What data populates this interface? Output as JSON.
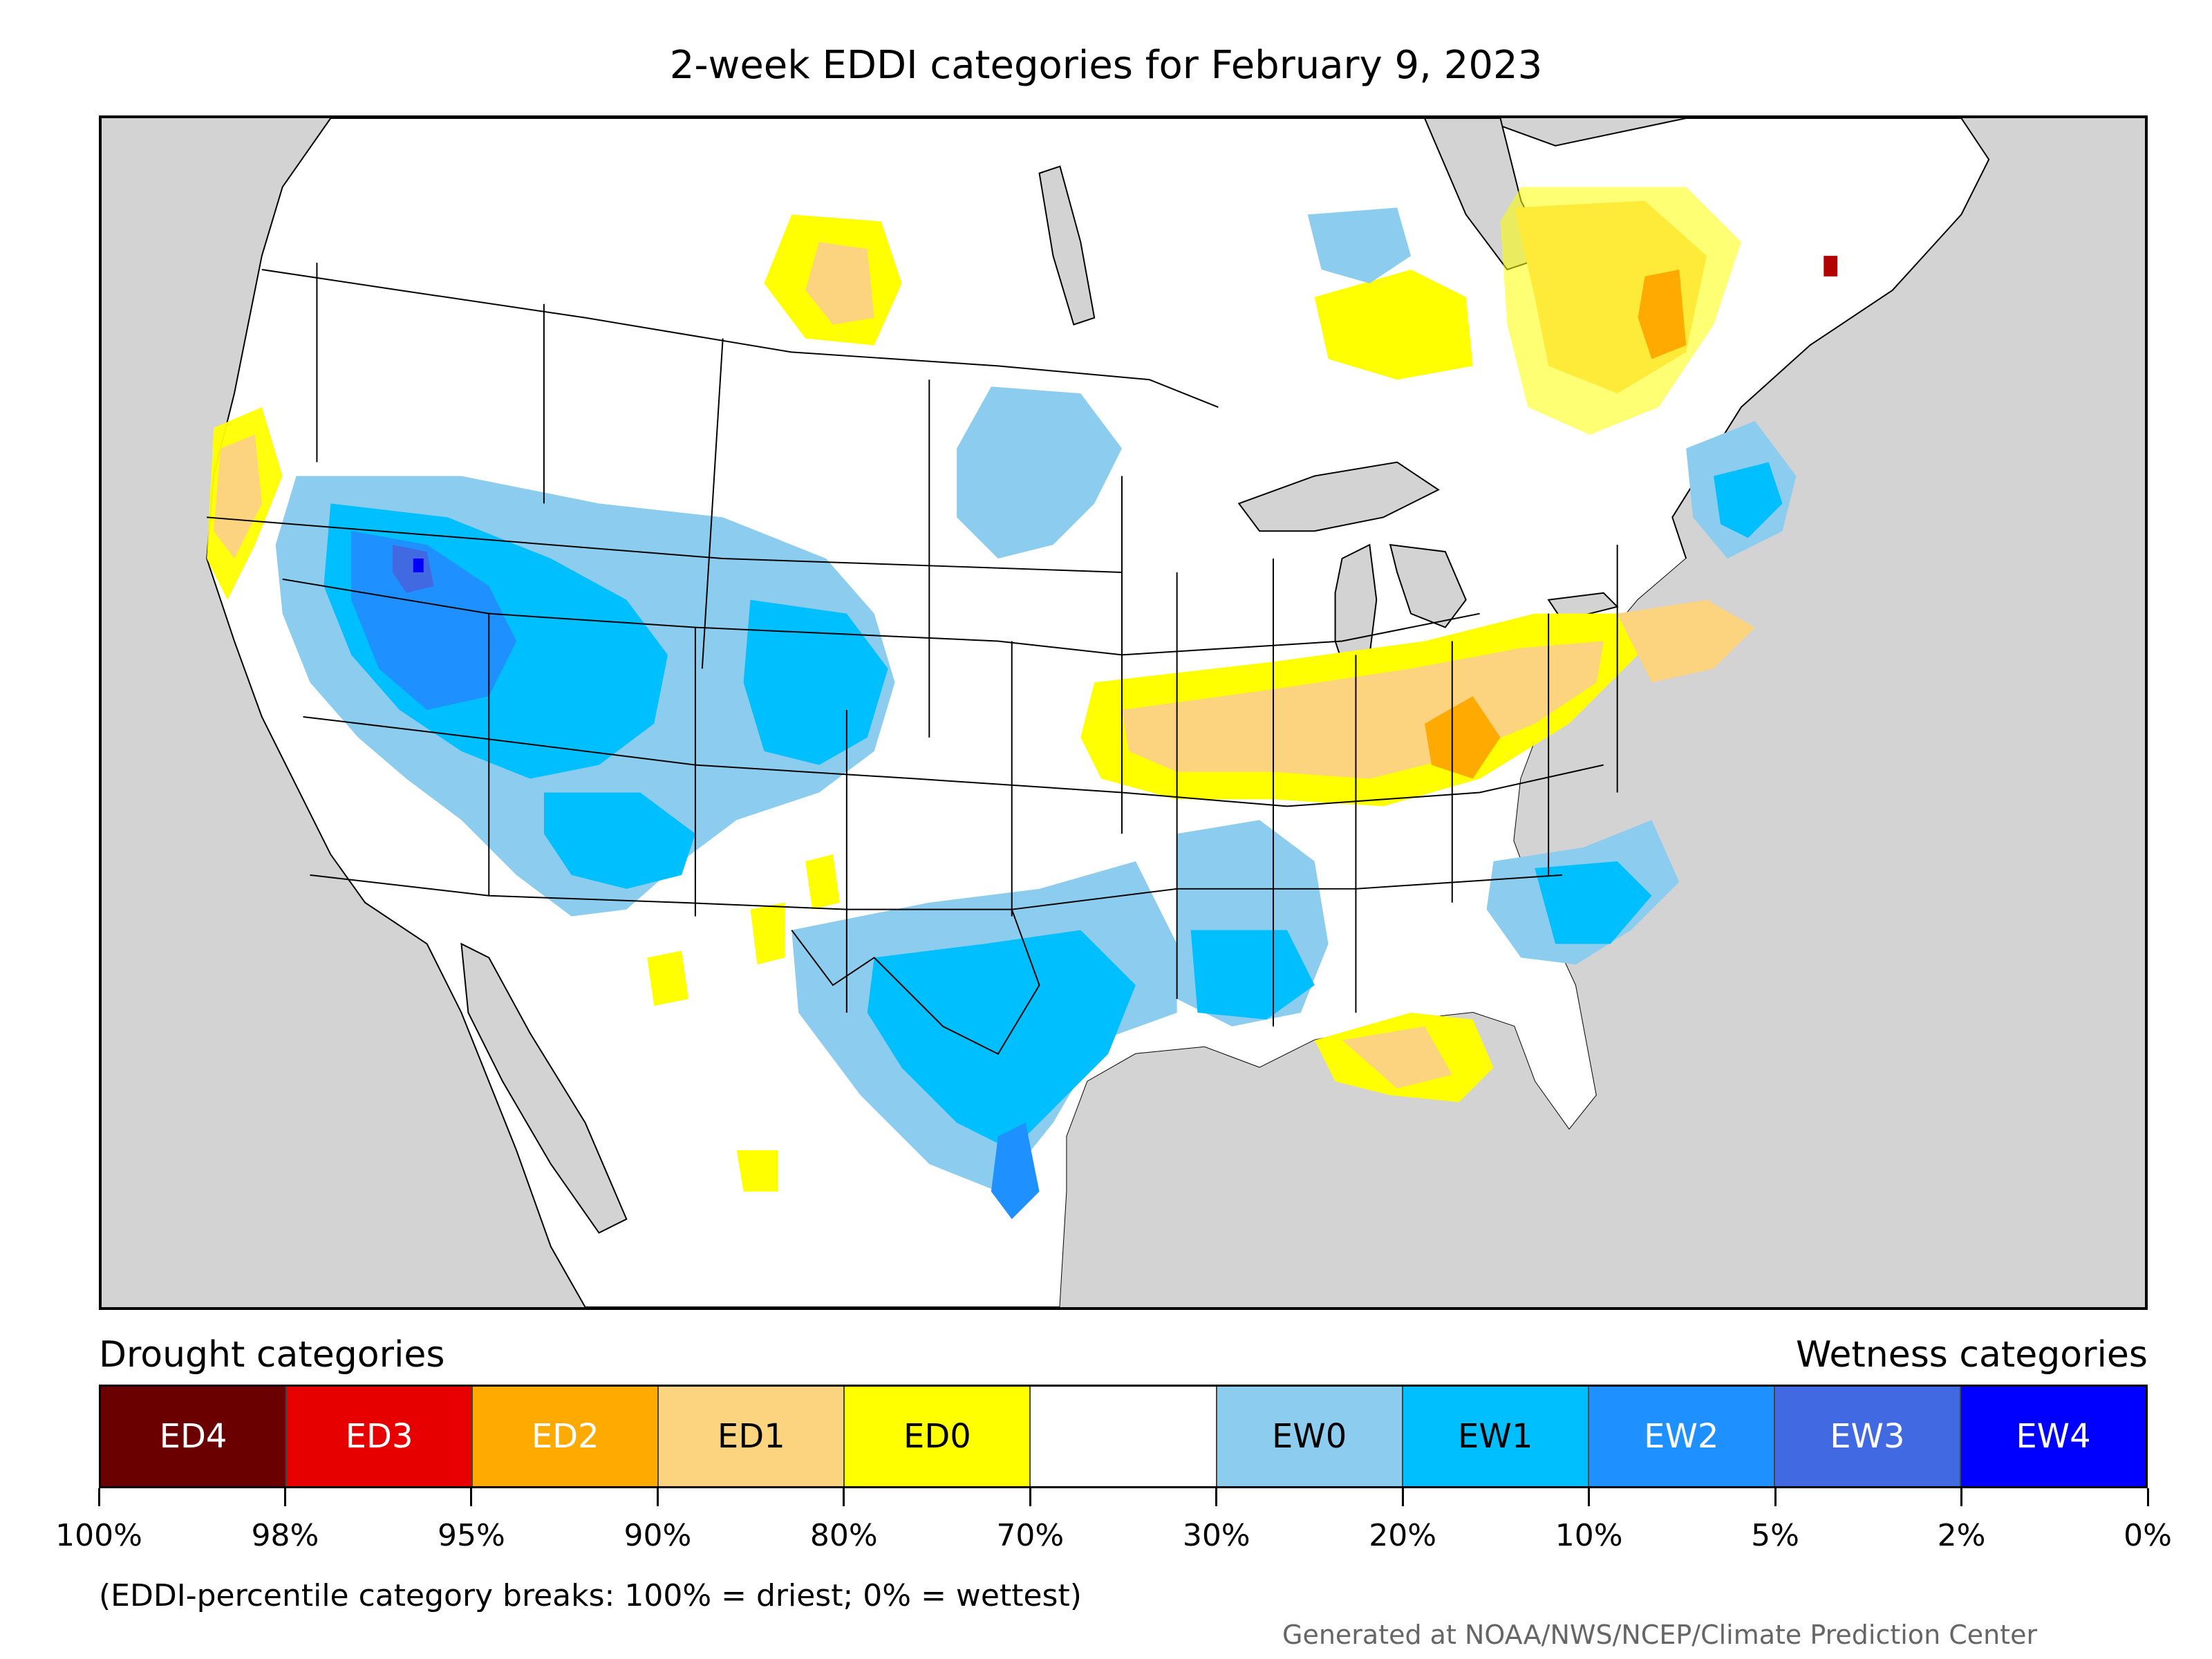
{
  "title": "2-week EDDI categories for February 9, 2023",
  "legend": {
    "drought_heading": "Drought categories",
    "wetness_heading": "Wetness categories",
    "categories": [
      {
        "label": "ED4",
        "color": "#6b0000",
        "text_color": "#ffffff"
      },
      {
        "label": "ED3",
        "color": "#e60000",
        "text_color": "#ffffff"
      },
      {
        "label": "ED2",
        "color": "#ffaa00",
        "text_color": "#ffffff"
      },
      {
        "label": "ED1",
        "color": "#fcd37f",
        "text_color": "#000000"
      },
      {
        "label": "ED0",
        "color": "#ffff00",
        "text_color": "#000000"
      },
      {
        "label": "",
        "color": "#ffffff",
        "text_color": "#000000"
      },
      {
        "label": "EW0",
        "color": "#8ccdef",
        "text_color": "#000000"
      },
      {
        "label": "EW1",
        "color": "#00bfff",
        "text_color": "#000000"
      },
      {
        "label": "EW2",
        "color": "#1e90ff",
        "text_color": "#ffffff"
      },
      {
        "label": "EW3",
        "color": "#4169e1",
        "text_color": "#ffffff"
      },
      {
        "label": "EW4",
        "color": "#0000ff",
        "text_color": "#ffffff"
      }
    ],
    "tick_labels": [
      "100%",
      "98%",
      "95%",
      "90%",
      "80%",
      "70%",
      "30%",
      "20%",
      "10%",
      "5%",
      "2%",
      "0%"
    ]
  },
  "footnote": "(EDDI-percentile category breaks: 100% = driest; 0% = wettest)",
  "credit": "Generated at NOAA/NWS/NCEP/Climate Prediction Center",
  "colors": {
    "background_land_outside": "#d3d3d3",
    "water": "#d3d3d3",
    "land": "#ffffff"
  }
}
